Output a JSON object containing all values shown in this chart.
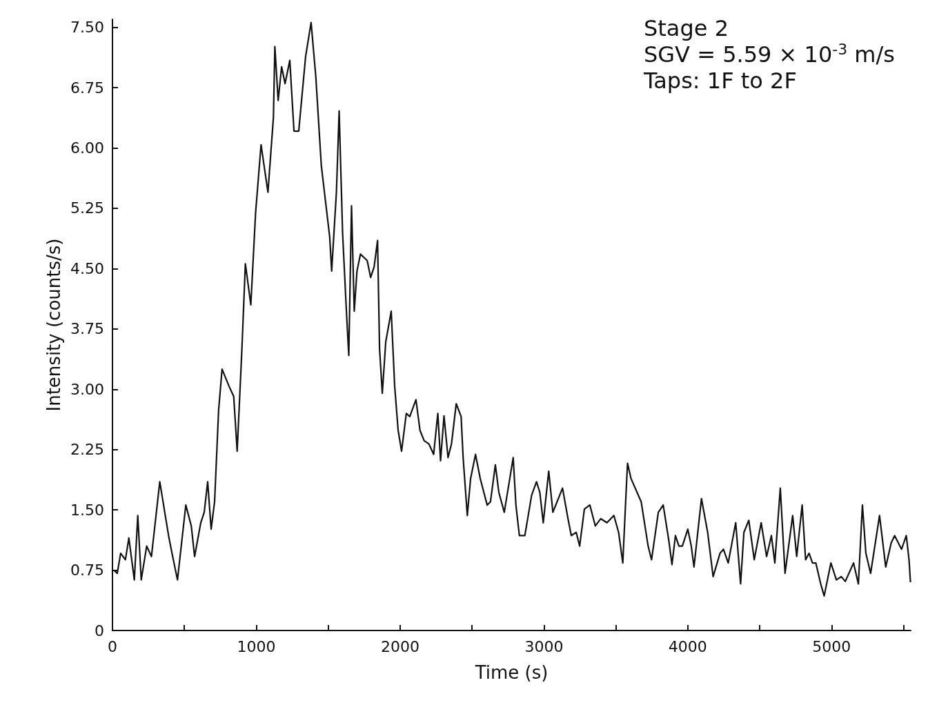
{
  "chart_data": {
    "type": "line",
    "xlabel": "Time (s)",
    "ylabel": "Intensity (counts/s)",
    "annotations": [
      "Stage 2",
      "SGV = 5.59 × 10$^{-3}$ m/s",
      "Taps: 1F to 2F"
    ],
    "x": [
      10,
      33,
      57,
      90,
      114,
      152,
      176,
      200,
      238,
      271,
      329,
      390,
      414,
      452,
      510,
      548,
      571,
      614,
      638,
      662,
      686,
      710,
      738,
      762,
      810,
      843,
      867,
      900,
      924,
      962,
      995,
      1033,
      1081,
      1119,
      1129,
      1152,
      1176,
      1200,
      1233,
      1262,
      1295,
      1343,
      1381,
      1414,
      1452,
      1510,
      1524,
      1557,
      1576,
      1600,
      1629,
      1643,
      1662,
      1681,
      1700,
      1724,
      1771,
      1795,
      1819,
      1843,
      1857,
      1876,
      1900,
      1938,
      1962,
      1986,
      2010,
      2043,
      2067,
      2110,
      2138,
      2167,
      2200,
      2233,
      2262,
      2281,
      2305,
      2333,
      2357,
      2390,
      2424,
      2438,
      2467,
      2490,
      2524,
      2557,
      2605,
      2628,
      2662,
      2686,
      2724,
      2786,
      2805,
      2829,
      2867,
      2914,
      2948,
      2971,
      2995,
      3033,
      3062,
      3129,
      3167,
      3190,
      3224,
      3248,
      3281,
      3319,
      3357,
      3395,
      3438,
      3486,
      3519,
      3548,
      3571,
      3581,
      3605,
      3676,
      3724,
      3748,
      3795,
      3829,
      3867,
      3890,
      3914,
      3938,
      3962,
      4000,
      4024,
      4043,
      4095,
      4138,
      4176,
      4224,
      4248,
      4281,
      4333,
      4367,
      4390,
      4424,
      4462,
      4510,
      4548,
      4581,
      4605,
      4643,
      4676,
      4729,
      4757,
      4795,
      4819,
      4843,
      4867,
      4890,
      4924,
      4948,
      4995,
      5033,
      5067,
      5095,
      5152,
      5186,
      5214,
      5238,
      5271,
      5333,
      5376,
      5414,
      5438,
      5486,
      5519,
      5538,
      5548
    ],
    "series": [
      {
        "color": "#111111",
        "values": [
          0.75,
          0.71,
          0.96,
          0.88,
          1.15,
          0.63,
          1.43,
          0.63,
          1.05,
          0.92,
          1.85,
          1.18,
          0.96,
          0.63,
          1.56,
          1.3,
          0.92,
          1.34,
          1.47,
          1.85,
          1.26,
          1.6,
          2.74,
          3.25,
          3.04,
          2.91,
          2.23,
          3.5,
          4.56,
          4.05,
          5.19,
          6.04,
          5.45,
          6.38,
          7.26,
          6.59,
          7.01,
          6.8,
          7.09,
          6.21,
          6.21,
          7.14,
          7.56,
          6.88,
          5.78,
          4.9,
          4.47,
          5.45,
          6.46,
          4.94,
          3.88,
          3.42,
          5.28,
          3.97,
          4.47,
          4.68,
          4.6,
          4.39,
          4.52,
          4.85,
          3.5,
          2.95,
          3.59,
          3.97,
          3.04,
          2.49,
          2.23,
          2.7,
          2.66,
          2.87,
          2.49,
          2.36,
          2.32,
          2.19,
          2.7,
          2.11,
          2.67,
          2.15,
          2.32,
          2.82,
          2.66,
          2.15,
          1.43,
          1.89,
          2.19,
          1.89,
          1.56,
          1.6,
          2.06,
          1.72,
          1.47,
          2.15,
          1.56,
          1.18,
          1.18,
          1.68,
          1.85,
          1.72,
          1.34,
          1.98,
          1.47,
          1.77,
          1.39,
          1.18,
          1.22,
          1.05,
          1.51,
          1.56,
          1.3,
          1.39,
          1.34,
          1.43,
          1.22,
          0.84,
          1.72,
          2.08,
          1.89,
          1.6,
          1.05,
          0.88,
          1.47,
          1.56,
          1.13,
          0.82,
          1.18,
          1.05,
          1.05,
          1.26,
          1.05,
          0.79,
          1.64,
          1.22,
          0.67,
          0.96,
          1.01,
          0.84,
          1.34,
          0.58,
          1.22,
          1.37,
          0.88,
          1.34,
          0.92,
          1.18,
          0.84,
          1.77,
          0.71,
          1.43,
          0.92,
          1.56,
          0.88,
          0.96,
          0.84,
          0.84,
          0.58,
          0.43,
          0.84,
          0.63,
          0.67,
          0.61,
          0.84,
          0.58,
          1.56,
          0.96,
          0.71,
          1.43,
          0.79,
          1.09,
          1.18,
          1.01,
          1.18,
          0.88,
          0.6
        ]
      }
    ],
    "xlim": [
      0,
      5550
    ],
    "xticks": [
      0,
      {
        "value": 500,
        "label": null
      },
      1000,
      {
        "value": 1500,
        "label": null
      },
      2000,
      {
        "value": 2500,
        "label": null
      },
      3000,
      {
        "value": 3500,
        "label": null
      },
      4000,
      {
        "value": 4500,
        "label": null
      },
      5000,
      {
        "value": 5500,
        "label": null
      }
    ],
    "ylim": [
      0,
      7.6
    ],
    "yticks": [
      0,
      0.75,
      {
        "value": 1.5,
        "label": "1.50"
      },
      2.25,
      {
        "value": 3,
        "label": "3.00"
      },
      3.75,
      {
        "value": 4.5,
        "label": "4.50"
      },
      5.25,
      {
        "value": 6,
        "label": "6.00"
      },
      6.75,
      {
        "value": 7.5,
        "label": "7.50"
      }
    ],
    "grid": false,
    "marker": "none",
    "line_style": "solid"
  }
}
